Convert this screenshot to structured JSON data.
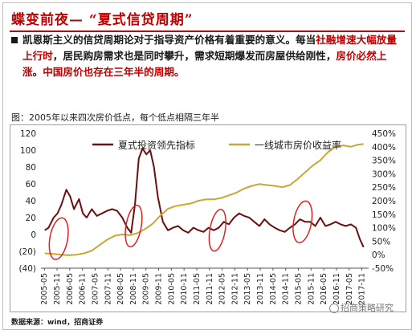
{
  "title": "蝶变前夜— “夏式信贷周期”",
  "body": {
    "segments": [
      {
        "text": "凯恩斯主义的信贷周期论对于指导资产价格有着重要的意义。每当",
        "red": false
      },
      {
        "text": "社融增速大幅放量上行时",
        "red": true
      },
      {
        "text": "，居民购房需求也是同时攀升，需求短期爆发而房屋供给刚性，",
        "red": false
      },
      {
        "text": "房价必然上涨",
        "red": true
      },
      {
        "text": "。",
        "red": false
      },
      {
        "text": "中国房价也存在三年半的周期。",
        "red": true
      }
    ]
  },
  "chart_caption": "图：2005年以来四次房价低点，每个低点相隔三年半",
  "source": "数据来源：wind，招商证券",
  "watermark": "招商策略研究",
  "colors": {
    "series1": "#6b0f0f",
    "series2": "#c8a832",
    "ellipse": "#e02020",
    "accent": "#c00000"
  },
  "chart_data": {
    "type": "line",
    "title": "",
    "categories": [
      "2005-05",
      "2005-11",
      "2006-05",
      "2006-11",
      "2007-05",
      "2007-11",
      "2008-05",
      "2008-11",
      "2009-05",
      "2009-11",
      "2010-05",
      "2010-11",
      "2011-05",
      "2011-11",
      "2012-05",
      "2012-11",
      "2013-05",
      "2013-11",
      "2014-05",
      "2014-11",
      "2015-05",
      "2015-11",
      "2016-05",
      "2016-11",
      "2017-05",
      "2017-11"
    ],
    "y_left": {
      "ticks": [
        "(40)",
        "(20)",
        "0",
        "20",
        "40",
        "60",
        "80",
        "100",
        "120"
      ],
      "min": -40,
      "max": 120
    },
    "y_right": {
      "ticks": [
        "-50%",
        "0%",
        "50%",
        "100%",
        "150%",
        "200%",
        "250%",
        "300%",
        "350%",
        "400%",
        "450%"
      ],
      "min": -50,
      "max": 450
    },
    "series": [
      {
        "name": "夏式投资领先指标",
        "axis": "left",
        "x": [
          2005.35,
          2005.5,
          2005.7,
          2005.85,
          2006.0,
          2006.2,
          2006.35,
          2006.5,
          2006.7,
          2006.85,
          2007.0,
          2007.2,
          2007.4,
          2007.6,
          2007.8,
          2008.0,
          2008.2,
          2008.4,
          2008.6,
          2008.75,
          2008.9,
          2009.05,
          2009.2,
          2009.35,
          2009.5,
          2009.65,
          2009.8,
          2010.0,
          2010.2,
          2010.4,
          2010.6,
          2010.8,
          2011.0,
          2011.2,
          2011.4,
          2011.6,
          2011.8,
          2012.0,
          2012.2,
          2012.4,
          2012.6,
          2012.8,
          2013.0,
          2013.2,
          2013.4,
          2013.6,
          2013.8,
          2014.0,
          2014.2,
          2014.4,
          2014.6,
          2014.8,
          2015.0,
          2015.2,
          2015.4,
          2015.6,
          2015.8,
          2016.0,
          2016.2,
          2016.4,
          2016.6,
          2016.8,
          2017.0,
          2017.2,
          2017.4,
          2017.6,
          2017.75,
          2017.9
        ],
        "values": [
          5,
          8,
          20,
          25,
          35,
          53,
          45,
          30,
          42,
          25,
          20,
          30,
          22,
          25,
          28,
          30,
          28,
          20,
          8,
          2,
          35,
          90,
          102,
          95,
          100,
          80,
          45,
          15,
          5,
          8,
          10,
          5,
          2,
          8,
          5,
          3,
          8,
          5,
          8,
          15,
          12,
          20,
          25,
          22,
          20,
          15,
          10,
          18,
          12,
          8,
          5,
          3,
          8,
          12,
          18,
          15,
          15,
          10,
          20,
          10,
          12,
          15,
          12,
          10,
          12,
          8,
          -5,
          -15
        ]
      },
      {
        "name": "一线城市房价收益率",
        "axis": "right",
        "x": [
          2005.35,
          2005.7,
          2006.0,
          2006.3,
          2006.6,
          2006.9,
          2007.2,
          2007.5,
          2007.8,
          2008.1,
          2008.4,
          2008.7,
          2009.0,
          2009.3,
          2009.6,
          2009.9,
          2010.2,
          2010.5,
          2010.8,
          2011.1,
          2011.4,
          2011.7,
          2012.0,
          2012.3,
          2012.6,
          2012.9,
          2013.2,
          2013.5,
          2013.8,
          2014.1,
          2014.4,
          2014.7,
          2015.0,
          2015.3,
          2015.6,
          2015.9,
          2016.2,
          2016.5,
          2016.8,
          2017.1,
          2017.4,
          2017.7,
          2017.9
        ],
        "values": [
          5,
          3,
          0,
          -2,
          0,
          5,
          15,
          35,
          55,
          70,
          75,
          72,
          80,
          95,
          115,
          145,
          170,
          180,
          185,
          190,
          200,
          205,
          205,
          210,
          220,
          230,
          245,
          255,
          262,
          258,
          255,
          250,
          258,
          280,
          305,
          330,
          350,
          380,
          400,
          405,
          400,
          408,
          410
        ]
      }
    ],
    "annotations": [
      {
        "type": "ellipse",
        "label": "",
        "center_x": 2005.9,
        "center_y": -5,
        "rx_years": 0.35,
        "ry": 25
      },
      {
        "type": "ellipse",
        "label": "",
        "center_x": 2008.85,
        "center_y": 10,
        "rx_years": 0.3,
        "ry": 25
      },
      {
        "type": "ellipse",
        "label": "",
        "center_x": 2012.15,
        "center_y": 5,
        "rx_years": 0.3,
        "ry": 25
      },
      {
        "type": "ellipse",
        "label": "",
        "center_x": 2015.5,
        "center_y": 15,
        "rx_years": 0.35,
        "ry": 25
      }
    ],
    "legend": {
      "placement": "top"
    },
    "grid": false
  }
}
